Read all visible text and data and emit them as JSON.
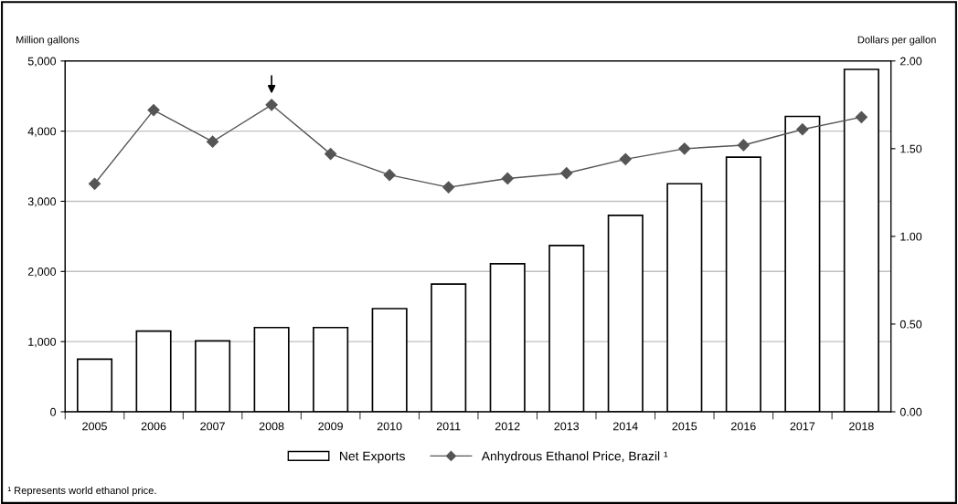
{
  "chart_data": {
    "type": "bar",
    "ylabel": "Million gallons",
    "y2label": "Dollars per gallon",
    "categories": [
      "2005",
      "2006",
      "2007",
      "2008",
      "2009",
      "2010",
      "2011",
      "2012",
      "2013",
      "2014",
      "2015",
      "2016",
      "2017",
      "2018"
    ],
    "series": [
      {
        "name": "Net Exports",
        "color": "#ffffff",
        "values": [
          750,
          1150,
          1010,
          1200,
          1200,
          1470,
          1820,
          2110,
          2370,
          2800,
          3250,
          3630,
          4210,
          4880
        ]
      },
      {
        "name": "Anhydrous Ethanol Price, Brazil ¹",
        "type": "line",
        "axis": "y2",
        "color": "#555555",
        "marker": "diamond",
        "values": [
          1.3,
          1.72,
          1.54,
          1.75,
          1.47,
          1.35,
          1.28,
          1.33,
          1.36,
          1.44,
          1.5,
          1.52,
          1.61,
          1.68
        ]
      }
    ],
    "ylim": [
      0,
      5000
    ],
    "yticks": [
      {
        "value": 0,
        "label": "0"
      },
      {
        "value": 1000,
        "label": "1,000"
      },
      {
        "value": 2000,
        "label": "2,000"
      },
      {
        "value": 3000,
        "label": "3,000"
      },
      {
        "value": 4000,
        "label": "4,000"
      },
      {
        "value": 5000,
        "label": "5,000"
      }
    ],
    "y2lim": [
      0,
      2
    ],
    "y2ticks": [
      {
        "value": 0,
        "label": "0.00"
      },
      {
        "value": 0.5,
        "label": "0.50"
      },
      {
        "value": 1,
        "label": "1.00"
      },
      {
        "value": 1.5,
        "label": "1.50"
      },
      {
        "value": 2,
        "label": "2.00"
      }
    ],
    "grid": "y",
    "legend": "bottom",
    "annotations": [
      "¹ Represents world ethanol price."
    ]
  }
}
